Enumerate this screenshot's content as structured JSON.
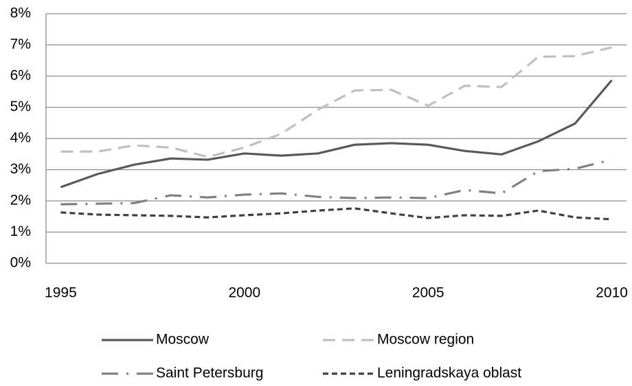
{
  "chart_data": {
    "type": "line",
    "x": [
      1995,
      1996,
      1997,
      1998,
      1999,
      2000,
      2001,
      2002,
      2003,
      2004,
      2005,
      2006,
      2007,
      2008,
      2009,
      2010
    ],
    "series": [
      {
        "name": "Moscow",
        "color": "#595959",
        "dash": "solid",
        "values": [
          2.44,
          2.86,
          3.16,
          3.36,
          3.32,
          3.52,
          3.45,
          3.52,
          3.8,
          3.85,
          3.8,
          3.6,
          3.49,
          3.91,
          4.48,
          5.87
        ]
      },
      {
        "name": "Moscow region",
        "color": "#bfbfbf",
        "dash": "dashed",
        "values": [
          3.58,
          3.58,
          3.78,
          3.71,
          3.41,
          3.71,
          4.15,
          4.92,
          5.54,
          5.56,
          5.05,
          5.69,
          5.65,
          6.62,
          6.64,
          6.92
        ]
      },
      {
        "name": "Saint Petersburg",
        "color": "#808080",
        "dash": "dashdot",
        "values": [
          1.89,
          1.91,
          1.93,
          2.18,
          2.11,
          2.2,
          2.24,
          2.13,
          2.09,
          2.11,
          2.09,
          2.35,
          2.24,
          2.95,
          3.03,
          3.32
        ]
      },
      {
        "name": "Leningradskaya oblast",
        "color": "#3f3f3f",
        "dash": "dotted",
        "values": [
          1.63,
          1.56,
          1.54,
          1.52,
          1.47,
          1.54,
          1.6,
          1.69,
          1.76,
          1.6,
          1.45,
          1.54,
          1.52,
          1.69,
          1.47,
          1.41
        ]
      }
    ],
    "xlim": [
      1994.6,
      2010.4
    ],
    "xticks": [
      1995,
      2000,
      2005,
      2010
    ],
    "ylim": [
      0,
      8
    ],
    "yticks": [
      {
        "value": 0,
        "label": "0%"
      },
      {
        "value": 1,
        "label": "1%"
      },
      {
        "value": 2,
        "label": "2%"
      },
      {
        "value": 3,
        "label": "3%"
      },
      {
        "value": 4,
        "label": "4%"
      },
      {
        "value": 5,
        "label": "5%"
      },
      {
        "value": 6,
        "label": "6%"
      },
      {
        "value": 7,
        "label": "7%"
      },
      {
        "value": 8,
        "label": "8%"
      }
    ],
    "grid": true,
    "legend": "bottom"
  }
}
